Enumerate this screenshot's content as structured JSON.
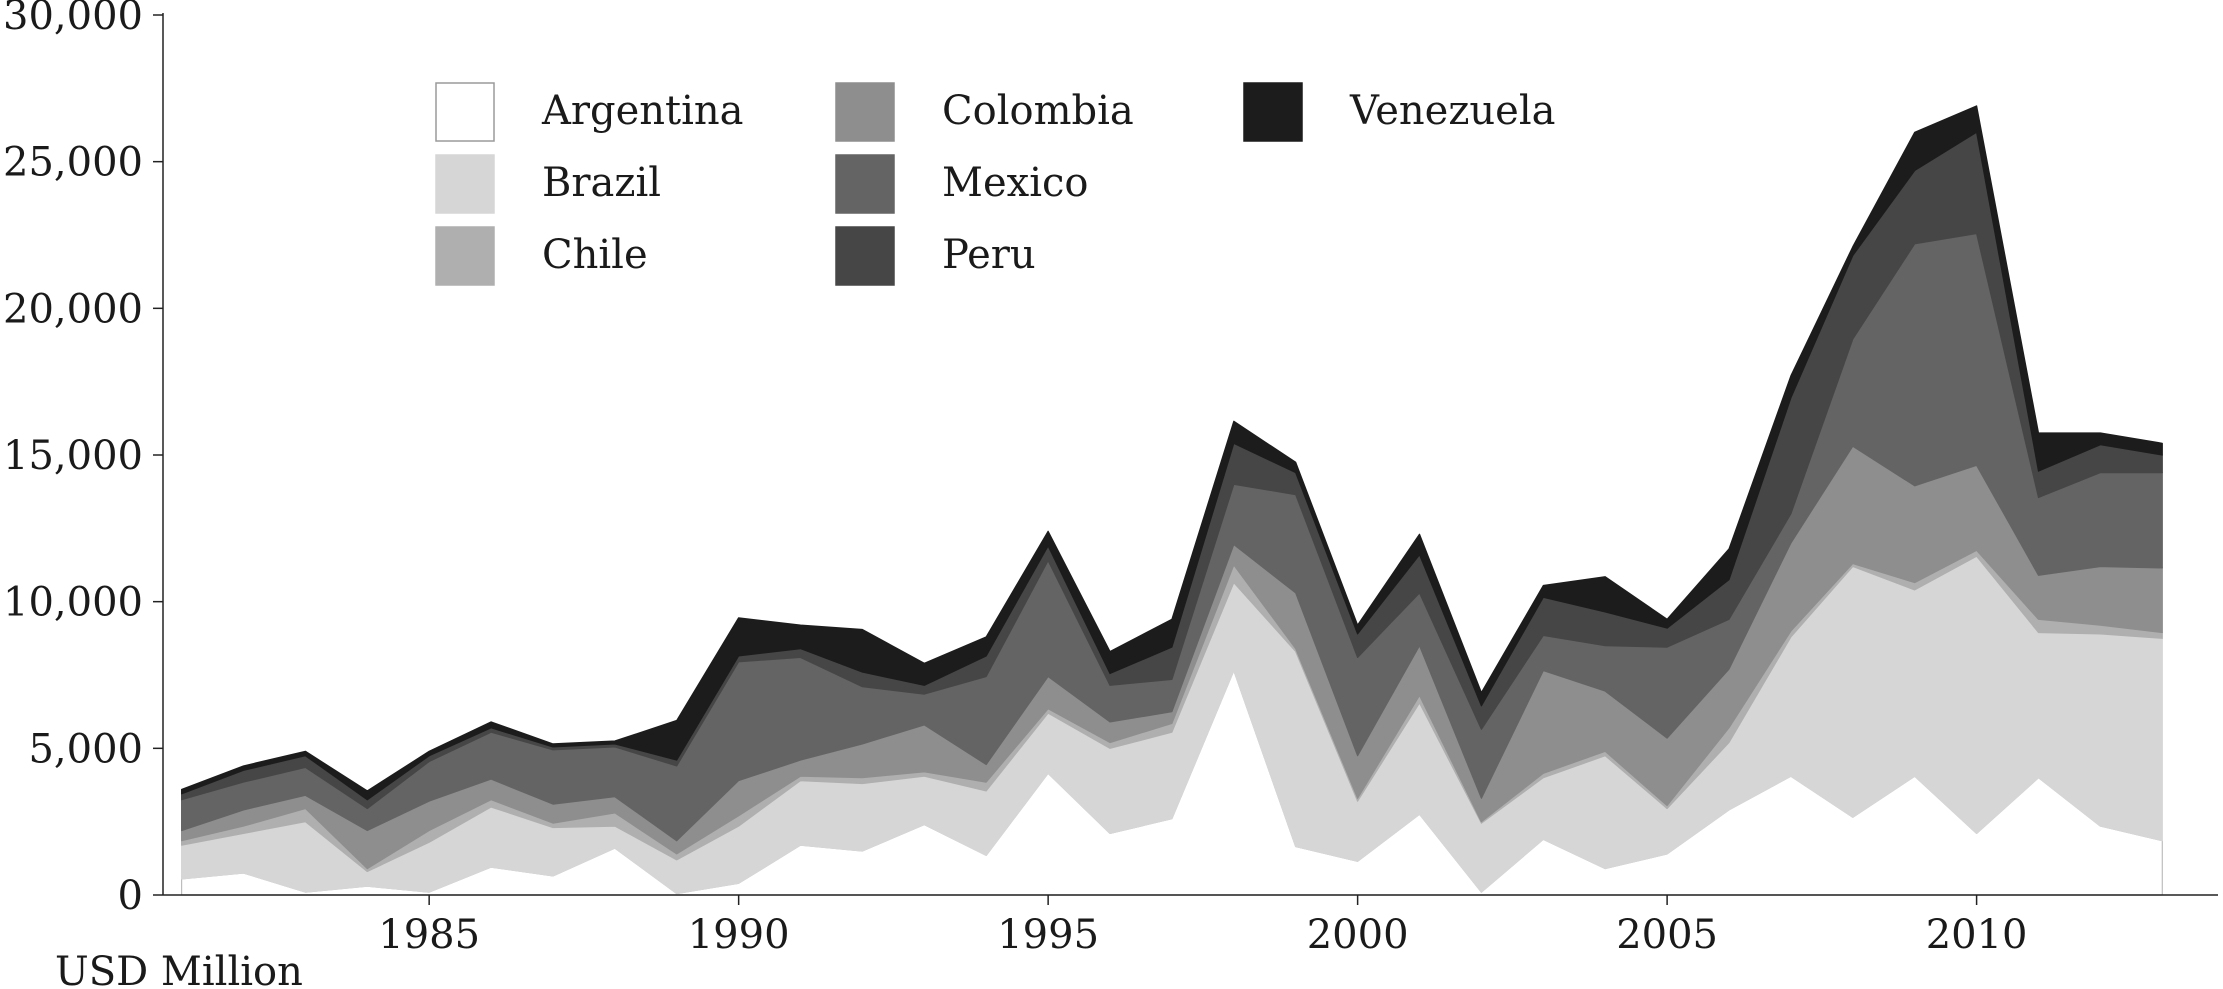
{
  "chart_data": {
    "type": "area",
    "stacked": true,
    "ylabel": "USD Million",
    "ylim": [
      0,
      30000
    ],
    "y_ticks": [
      0,
      5000,
      10000,
      15000,
      20000,
      25000,
      30000
    ],
    "y_tick_labels": [
      "0",
      "5,000",
      "10,000",
      "15,000",
      "20,000",
      "25,000",
      "30,000"
    ],
    "x_ticks": [
      1985,
      1990,
      1995,
      2000,
      2005,
      2010
    ],
    "x_tick_labels": [
      "1985",
      "1990",
      "1995",
      "2000",
      "2005",
      "2010"
    ],
    "xlim": [
      1980.7,
      2013.9
    ],
    "grid": false,
    "legend_placement": "top-left",
    "x": [
      1981,
      1982,
      1983,
      1984,
      1985,
      1986,
      1987,
      1988,
      1989,
      1990,
      1991,
      1992,
      1993,
      1994,
      1995,
      1996,
      1997,
      1998,
      1999,
      2000,
      2001,
      2002,
      2003,
      2004,
      2005,
      2006,
      2007,
      2008,
      2009,
      2010,
      2011,
      2012,
      2013
    ],
    "series": [
      {
        "name": "Argentina",
        "color": "#ffffff",
        "values": [
          550,
          750,
          100,
          300,
          100,
          950,
          650,
          1600,
          50,
          400,
          1700,
          1500,
          2400,
          1350,
          4150,
          2100,
          2600,
          7650,
          1650,
          1150,
          2750,
          100,
          1900,
          900,
          1400,
          2900,
          4050,
          2650,
          4050,
          2100,
          4000,
          2350,
          1850
        ]
      },
      {
        "name": "Brazil",
        "color": "#d6d6d6",
        "values": [
          1150,
          1350,
          2400,
          500,
          1700,
          2050,
          1650,
          750,
          1150,
          1950,
          2200,
          2300,
          1650,
          2200,
          2050,
          2900,
          2950,
          3000,
          6650,
          2050,
          3800,
          2350,
          2100,
          3850,
          1550,
          2300,
          4750,
          8550,
          6350,
          9450,
          4950,
          6550,
          6900
        ]
      },
      {
        "name": "Chile",
        "color": "#afafaf",
        "values": [
          150,
          250,
          450,
          100,
          400,
          250,
          150,
          450,
          200,
          350,
          150,
          200,
          150,
          300,
          150,
          200,
          300,
          600,
          100,
          100,
          250,
          50,
          150,
          150,
          100,
          500,
          200,
          100,
          250,
          200,
          450,
          300,
          200
        ]
      },
      {
        "name": "Colombia",
        "color": "#8e8e8e",
        "values": [
          350,
          550,
          450,
          1300,
          1000,
          700,
          650,
          550,
          450,
          1200,
          550,
          1150,
          1600,
          600,
          1100,
          700,
          400,
          700,
          1900,
          1450,
          1700,
          800,
          3500,
          2050,
          2300,
          2000,
          3000,
          4000,
          3300,
          2900,
          1500,
          2000,
          2200
        ]
      },
      {
        "name": "Mexico",
        "color": "#646464",
        "values": [
          1050,
          950,
          950,
          750,
          1350,
          1600,
          1850,
          1700,
          2550,
          4050,
          3500,
          1950,
          1050,
          3000,
          3950,
          1250,
          1100,
          2050,
          3350,
          3350,
          1800,
          2350,
          1200,
          1550,
          3100,
          1700,
          1000,
          3650,
          8250,
          7900,
          2650,
          3200,
          3250
        ]
      },
      {
        "name": "Peru",
        "color": "#464646",
        "values": [
          200,
          400,
          400,
          300,
          200,
          150,
          100,
          100,
          200,
          200,
          300,
          500,
          300,
          700,
          500,
          400,
          1100,
          1400,
          750,
          800,
          1300,
          800,
          1300,
          1150,
          650,
          1350,
          3950,
          2850,
          2500,
          3450,
          900,
          950,
          600
        ]
      },
      {
        "name": "Venezuela",
        "color": "#1c1c1c",
        "values": [
          150,
          150,
          150,
          300,
          150,
          200,
          100,
          100,
          1350,
          1300,
          800,
          1450,
          750,
          650,
          500,
          750,
          950,
          750,
          350,
          300,
          700,
          450,
          400,
          1200,
          300,
          1050,
          750,
          300,
          1300,
          900,
          1300,
          400,
          400
        ]
      }
    ]
  }
}
